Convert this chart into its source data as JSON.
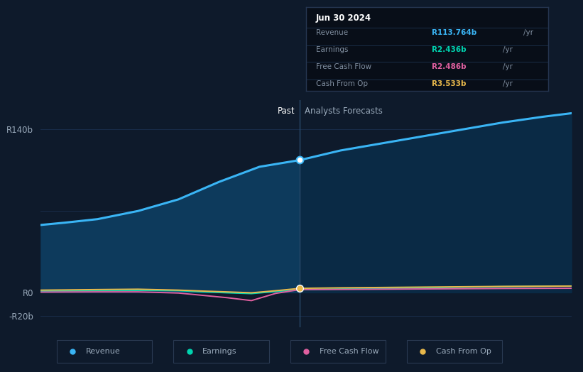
{
  "background_color": "#0e1a2b",
  "plot_bg_color": "#0e1a2b",
  "ylim": [
    -30,
    165
  ],
  "xlim_start": 2021.3,
  "xlim_end": 2027.85,
  "divider_x": 2024.5,
  "past_label": "Past",
  "forecast_label": "Analysts Forecasts",
  "xticks": [
    2022,
    2023,
    2024,
    2025,
    2026,
    2027
  ],
  "revenue_color": "#3ab5f5",
  "revenue_fill_past": "#0d3a5c",
  "revenue_fill_future": "#0a2a45",
  "earnings_color": "#00d4b0",
  "fcf_color": "#e060a0",
  "cashop_color": "#e8b84b",
  "revenue_past_x": [
    2021.3,
    2021.6,
    2022.0,
    2022.5,
    2023.0,
    2023.5,
    2024.0,
    2024.5
  ],
  "revenue_past_y": [
    58,
    60,
    63,
    70,
    80,
    95,
    108,
    113.764
  ],
  "revenue_future_x": [
    2024.5,
    2025.0,
    2025.5,
    2026.0,
    2026.5,
    2027.0,
    2027.5,
    2027.85
  ],
  "revenue_future_y": [
    113.764,
    122,
    128,
    134,
    140,
    146,
    151,
    154
  ],
  "earnings_past_x": [
    2021.3,
    2021.6,
    2022.0,
    2022.5,
    2023.0,
    2023.3,
    2023.6,
    2023.9,
    2024.2,
    2024.5
  ],
  "earnings_past_y": [
    1.2,
    1.3,
    1.5,
    1.8,
    1.5,
    0.5,
    -0.3,
    -1.0,
    0.8,
    2.436
  ],
  "earnings_future_x": [
    2024.5,
    2025.0,
    2025.5,
    2026.0,
    2026.5,
    2027.0,
    2027.85
  ],
  "earnings_future_y": [
    2.436,
    3.0,
    3.5,
    4.0,
    4.5,
    5.0,
    5.5
  ],
  "fcf_past_x": [
    2021.3,
    2021.6,
    2022.0,
    2022.5,
    2023.0,
    2023.3,
    2023.6,
    2023.9,
    2024.2,
    2024.5
  ],
  "fcf_past_y": [
    0.3,
    0.4,
    0.5,
    0.5,
    -0.5,
    -2.5,
    -4.5,
    -7.0,
    -0.8,
    2.486
  ],
  "fcf_future_x": [
    2024.5,
    2025.0,
    2025.5,
    2026.0,
    2026.5,
    2027.0,
    2027.85
  ],
  "fcf_future_y": [
    2.486,
    2.6,
    2.8,
    3.0,
    3.2,
    3.4,
    3.6
  ],
  "cashop_past_x": [
    2021.3,
    2021.6,
    2022.0,
    2022.5,
    2023.0,
    2023.3,
    2023.6,
    2023.9,
    2024.2,
    2024.5
  ],
  "cashop_past_y": [
    2.0,
    2.2,
    2.5,
    2.8,
    2.0,
    1.2,
    0.5,
    -0.3,
    1.5,
    3.533
  ],
  "cashop_future_x": [
    2024.5,
    2025.0,
    2025.5,
    2026.0,
    2026.5,
    2027.0,
    2027.85
  ],
  "cashop_future_y": [
    3.533,
    4.0,
    4.3,
    4.6,
    4.9,
    5.2,
    5.5
  ],
  "tooltip_title": "Jun 30 2024",
  "tooltip_rows": [
    {
      "label": "Revenue",
      "value": "R113.764b",
      "unit": "/yr",
      "color": "#3ab5f5"
    },
    {
      "label": "Earnings",
      "value": "R2.436b",
      "unit": "/yr",
      "color": "#00d4b0"
    },
    {
      "label": "Free Cash Flow",
      "value": "R2.486b",
      "unit": "/yr",
      "color": "#e060a0"
    },
    {
      "label": "Cash From Op",
      "value": "R3.533b",
      "unit": "/yr",
      "color": "#e8b84b"
    }
  ],
  "legend_items": [
    {
      "label": "Revenue",
      "color": "#3ab5f5"
    },
    {
      "label": "Earnings",
      "color": "#00d4b0"
    },
    {
      "label": "Free Cash Flow",
      "color": "#e060a0"
    },
    {
      "label": "Cash From Op",
      "color": "#e8b84b"
    }
  ],
  "grid_color": "#1a3050",
  "text_color": "#9aaabb",
  "white_color": "#ffffff",
  "ytick_values": [
    140,
    0,
    -20
  ],
  "ytick_labels": [
    "R140b",
    "R0",
    "-R20b"
  ]
}
